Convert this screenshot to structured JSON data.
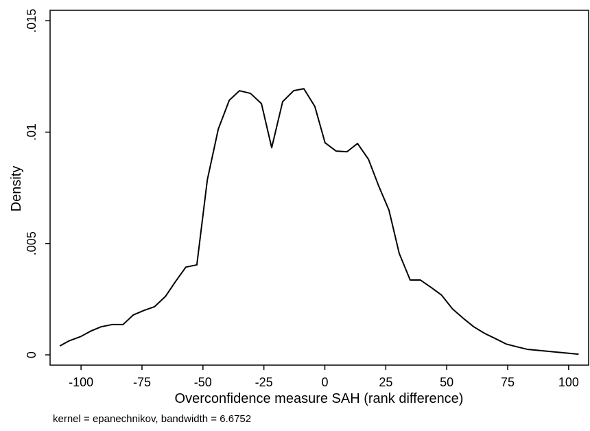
{
  "chart_data": {
    "type": "line",
    "x_label": "Overconfidence measure SAH (rank difference)",
    "y_label": "Density",
    "note": "kernel = epanechnikov, bandwidth = 6.6752",
    "xlim": [
      -112.7,
      108.2
    ],
    "ylim": [
      -0.00046,
      0.01547
    ],
    "xticks": [
      -100,
      -75,
      -50,
      -25,
      0,
      25,
      50,
      75,
      100
    ],
    "yticks": [
      0,
      {
        "value": 0.005,
        "label": ".005"
      },
      {
        "value": 0.01,
        "label": ".01"
      },
      {
        "value": 0.015,
        "label": ".015"
      }
    ],
    "grid": false,
    "color": "#000000",
    "x": [
      -108.7,
      -105.1,
      -100,
      -95.8,
      -91.8,
      -87.3,
      -82.8,
      -78.6,
      -74.1,
      -69.9,
      -65.4,
      -61.2,
      -57,
      -52.5,
      -48.2,
      -43.7,
      -39.2,
      -35,
      -30.5,
      -26,
      -21.8,
      -17.3,
      -12.8,
      -8.6,
      -4.1,
      0.1,
      4.6,
      9.1,
      13.4,
      17.9,
      22.1,
      26.3,
      30.5,
      35,
      39.2,
      43.7,
      47.9,
      52.4,
      56.9,
      61.1,
      65.6,
      69.8,
      74.3,
      78.5,
      83,
      104.1
    ],
    "values": [
      0.0004,
      0.00062,
      0.00083,
      0.00108,
      0.00126,
      0.00136,
      0.00136,
      0.00179,
      0.002,
      0.00216,
      0.00262,
      0.0033,
      0.00394,
      0.00404,
      0.00786,
      0.01014,
      0.01143,
      0.01186,
      0.01174,
      0.01128,
      0.0093,
      0.01137,
      0.01186,
      0.01195,
      0.01115,
      0.00952,
      0.00915,
      0.00912,
      0.00949,
      0.00878,
      0.00758,
      0.0065,
      0.00456,
      0.00336,
      0.00336,
      0.00302,
      0.00268,
      0.00206,
      0.00163,
      0.00126,
      0.00096,
      0.00074,
      0.00049,
      0.00037,
      0.00025,
      3e-05
    ]
  }
}
